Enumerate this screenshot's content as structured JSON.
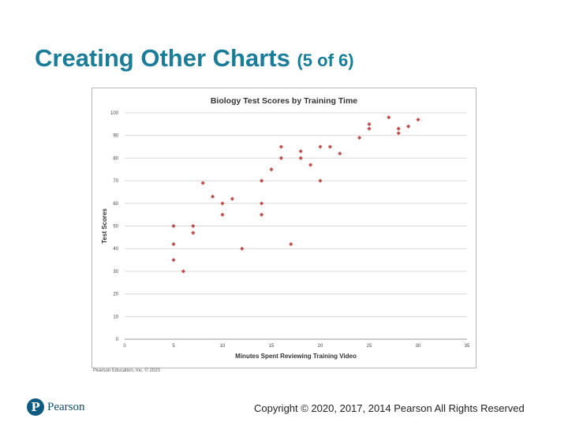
{
  "slide": {
    "title_main": "Creating Other Charts",
    "title_sub": "(5 of 6)",
    "copyright": "Copyright © 2020, 2017, 2014 Pearson All Rights Reserved",
    "logo_text": "Pearson",
    "logo_letter": "P"
  },
  "chart_data": {
    "type": "scatter",
    "title": "Biology Test Scores by Training Time",
    "xlabel": "Minutes Spent Reviewing Training Video",
    "ylabel": "Test Scores",
    "xlim": [
      0,
      35
    ],
    "ylim": [
      0,
      100
    ],
    "xticks": [
      "0",
      "5",
      "10",
      "15",
      "20",
      "25",
      "30",
      "35"
    ],
    "yticks": [
      "0",
      "10",
      "20",
      "30",
      "40",
      "50",
      "60",
      "70",
      "80",
      "90",
      "100"
    ],
    "grid": "horizontal",
    "marker_color": "#c0504d",
    "credit": "Pearson Education, Inc. © 2020",
    "series": [
      {
        "x": [
          5,
          5,
          5,
          6,
          7,
          7,
          8,
          9,
          10,
          10,
          11,
          12,
          14,
          14,
          14,
          15,
          16,
          16,
          17,
          18,
          18,
          19,
          20,
          20,
          21,
          22,
          24,
          25,
          25,
          27,
          28,
          28,
          29,
          30
        ],
        "y": [
          50,
          42,
          35,
          30,
          50,
          47,
          69,
          63,
          60,
          55,
          62,
          40,
          70,
          60,
          55,
          75,
          85,
          80,
          42,
          83,
          80,
          77,
          85,
          70,
          85,
          82,
          89,
          95,
          93,
          98,
          93,
          91,
          94,
          97
        ]
      }
    ]
  }
}
